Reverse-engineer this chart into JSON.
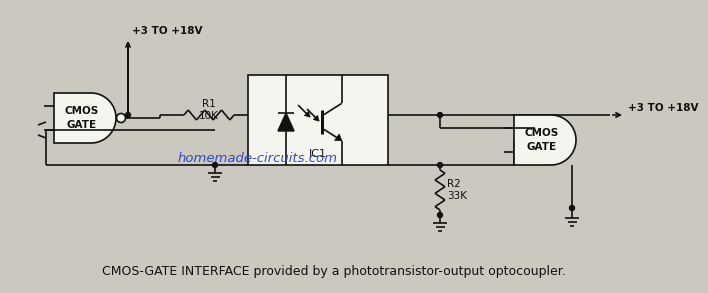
{
  "bg_color": "#cbc8bf",
  "title_text": "CMOS-GATE INTERFACE provided by a phototransistor-output optocoupler.",
  "watermark": "homemade-circuits.com",
  "watermark_color": "#2244cc",
  "vcc_label_left": "+3 TO +18V",
  "vcc_label_right": "+3 TO +18V",
  "r1_label": "R1\n10K",
  "r2_label": "R2\n33K",
  "ic1_label": "IC1",
  "cmos_left_label": "CMOS\nGATE",
  "cmos_right_label": "CMOS\nGATE",
  "line_color": "#111111",
  "fill_color": "#f5f5f0",
  "text_color": "#111111",
  "title_fontsize": 9.0,
  "label_fontsize": 7.5,
  "lw": 1.2
}
